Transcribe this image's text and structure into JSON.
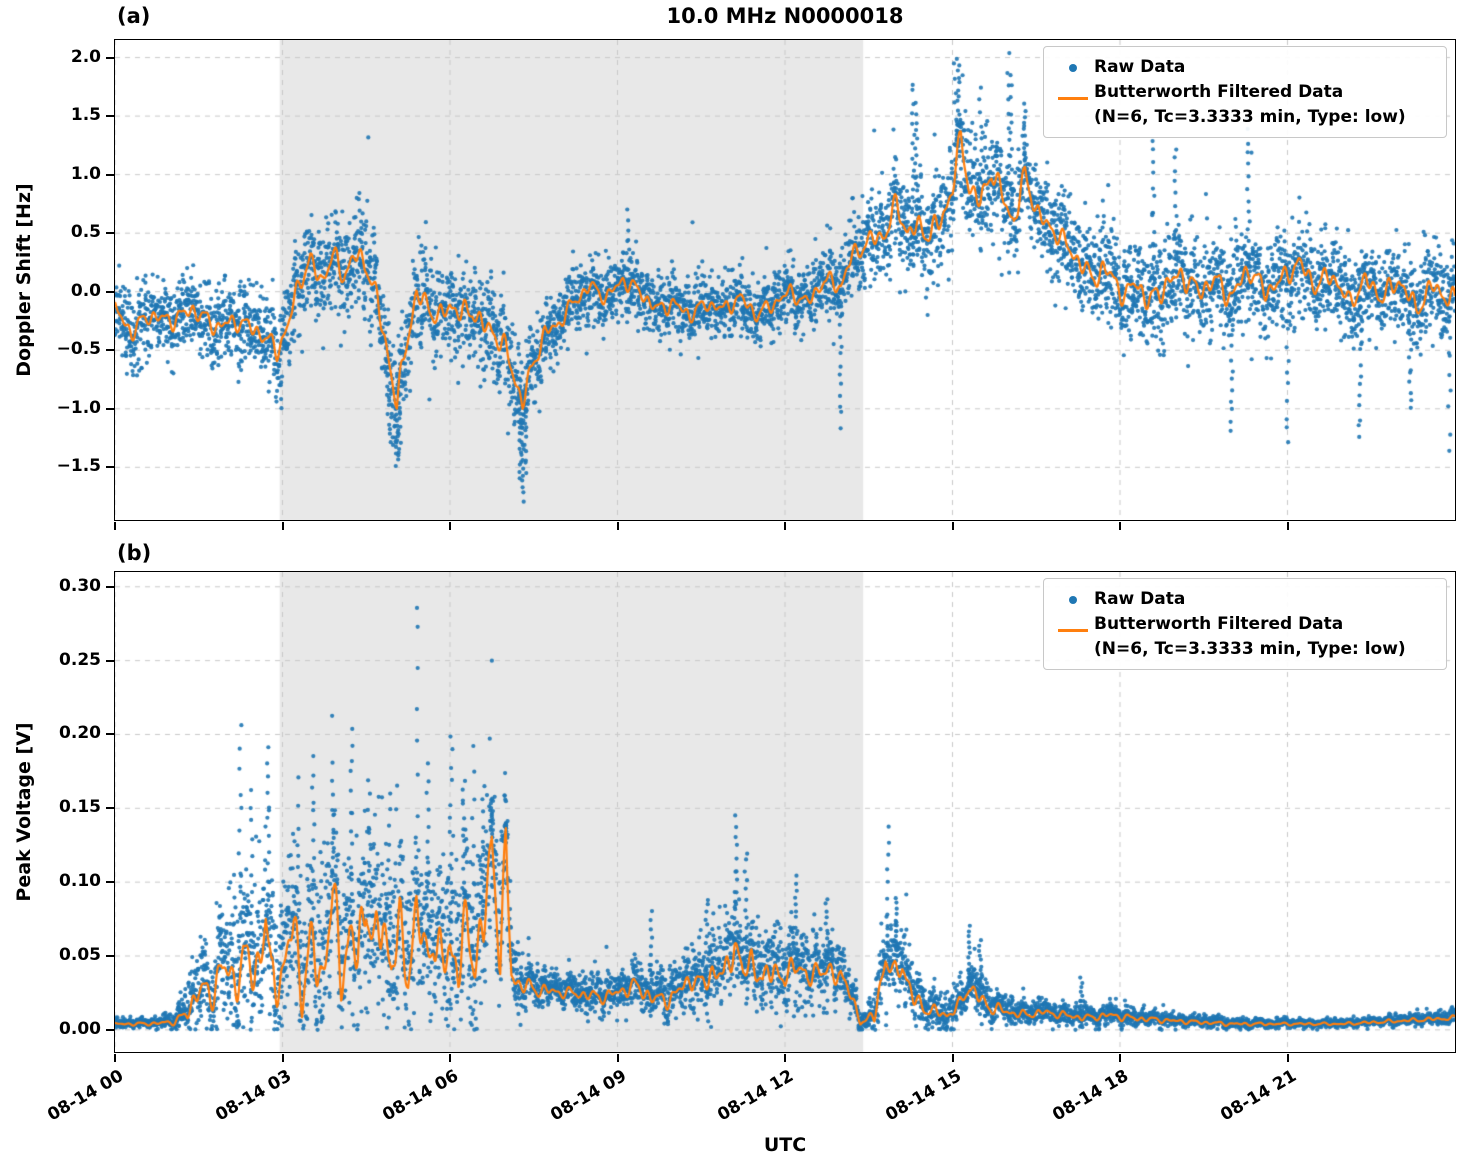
{
  "figure": {
    "title": "10.0 MHz N0000018",
    "xlabel": "UTC"
  },
  "panels": [
    {
      "label": "(a)",
      "ylabel": "Doppler Shift [Hz]"
    },
    {
      "label": "(b)",
      "ylabel": "Peak Voltage [V]"
    }
  ],
  "legend": {
    "raw_label": "Raw Data",
    "filtered_label_line1": "Butterworth Filtered Data",
    "filtered_label_line2": "(N=6, Tc=3.3333 min, Type: low)"
  },
  "colors": {
    "raw": "#1f77b4",
    "filtered": "#ff7f0e",
    "band": "#e8e8e8",
    "grid": "#c9c9c9",
    "text": "#000000"
  },
  "chart_data": [
    {
      "type": "scatter",
      "panel": "a",
      "ylabel": "Doppler Shift [Hz]",
      "ylim": [
        -1.95,
        2.15
      ],
      "yticks": [
        2.0,
        1.5,
        1.0,
        0.5,
        0.0,
        -0.5,
        -1.0,
        -1.5
      ],
      "ytick_labels": [
        "2.0",
        "1.5",
        "1.0",
        "0.5",
        "0.0",
        "−0.5",
        "−1.0",
        "−1.5"
      ],
      "x_range_hours": [
        0,
        24
      ],
      "xticks_hours": [
        0,
        3,
        6,
        9,
        12,
        15,
        18,
        21
      ],
      "xtick_labels": [
        "08-14 00",
        "08-14 03",
        "08-14 06",
        "08-14 09",
        "08-14 12",
        "08-14 15",
        "08-14 18",
        "08-14 21"
      ],
      "shaded_region_hours": [
        2.95,
        13.4
      ],
      "grid": "dashed",
      "legend_position": "upper right",
      "series": [
        {
          "name": "Raw Data",
          "type": "scatter",
          "color": "#1f77b4"
        },
        {
          "name": "Butterworth Filtered Data (N=6, Tc=3.3333 min, Type: low)",
          "type": "line",
          "color": "#ff7f0e",
          "x": [
            0,
            0.3,
            0.6,
            1.0,
            1.4,
            1.8,
            2.2,
            2.6,
            2.9,
            3.1,
            3.3,
            3.5,
            3.7,
            3.9,
            4.1,
            4.3,
            4.5,
            4.7,
            4.9,
            5.05,
            5.2,
            5.4,
            5.6,
            5.8,
            6.0,
            6.2,
            6.4,
            6.6,
            6.8,
            7.0,
            7.3,
            7.5,
            7.7,
            7.9,
            8.2,
            8.5,
            8.8,
            9.1,
            9.4,
            9.7,
            10.0,
            10.3,
            10.6,
            10.9,
            11.2,
            11.5,
            11.8,
            12.1,
            12.4,
            12.7,
            13.0,
            13.2,
            13.4,
            13.6,
            13.8,
            14.0,
            14.2,
            14.4,
            14.6,
            14.8,
            15.0,
            15.15,
            15.3,
            15.5,
            15.7,
            15.9,
            16.1,
            16.3,
            16.5,
            16.7,
            16.9,
            17.1,
            17.3,
            17.5,
            17.7,
            17.9,
            18.1,
            18.3,
            18.5,
            18.8,
            19.1,
            19.4,
            19.7,
            20.0,
            20.3,
            20.6,
            20.9,
            21.2,
            21.5,
            21.8,
            22.1,
            22.4,
            22.7,
            23.0,
            23.3,
            23.6,
            24.0
          ],
          "y": [
            -0.15,
            -0.35,
            -0.2,
            -0.25,
            -0.15,
            -0.3,
            -0.25,
            -0.35,
            -0.5,
            -0.3,
            0.1,
            0.25,
            0.1,
            0.3,
            0.15,
            0.3,
            0.25,
            -0.1,
            -0.55,
            -1.0,
            -0.45,
            -0.05,
            -0.1,
            -0.25,
            -0.1,
            -0.2,
            -0.15,
            -0.3,
            -0.35,
            -0.5,
            -0.95,
            -0.6,
            -0.35,
            -0.3,
            -0.1,
            0.05,
            -0.05,
            0.1,
            0.0,
            -0.15,
            -0.1,
            -0.2,
            -0.1,
            -0.15,
            -0.05,
            -0.2,
            -0.1,
            0.0,
            -0.1,
            0.1,
            0.05,
            0.3,
            0.4,
            0.45,
            0.5,
            0.75,
            0.5,
            0.55,
            0.5,
            0.6,
            0.9,
            1.3,
            0.9,
            0.75,
            1.05,
            0.8,
            0.6,
            1.0,
            0.7,
            0.55,
            0.5,
            0.35,
            0.25,
            0.1,
            0.2,
            0.1,
            -0.05,
            0.1,
            -0.1,
            0.05,
            0.15,
            0.0,
            0.1,
            -0.05,
            0.2,
            0.0,
            0.1,
            0.25,
            0.05,
            0.15,
            -0.1,
            0.1,
            -0.05,
            0.1,
            -0.15,
            0.05,
            -0.1
          ]
        }
      ],
      "scatter_envelope": {
        "x": [
          0,
          1,
          2,
          3,
          4,
          5,
          6,
          7,
          8,
          9,
          10,
          11,
          12,
          13,
          13.5,
          14,
          15,
          16,
          17,
          18,
          19,
          20,
          21,
          22,
          23,
          24
        ],
        "halfwidth": [
          0.35,
          0.35,
          0.35,
          0.4,
          0.45,
          0.5,
          0.45,
          0.45,
          0.3,
          0.3,
          0.3,
          0.3,
          0.3,
          0.35,
          0.4,
          0.45,
          0.5,
          0.45,
          0.4,
          0.45,
          0.45,
          0.45,
          0.4,
          0.4,
          0.4,
          0.45
        ]
      },
      "scatter_extremes": {
        "x": [
          4.9,
          5.05,
          5.1,
          7.25,
          7.3,
          7.35,
          9.2,
          13.0,
          14.3,
          14.35,
          15.05,
          15.1,
          15.5,
          16.0,
          16.05,
          16.3,
          18.6,
          19.0,
          20.3,
          20.0,
          21.0,
          22.3,
          23.2,
          23.9
        ],
        "y": [
          -1.2,
          -1.5,
          -1.35,
          -1.6,
          -1.78,
          -1.55,
          0.7,
          -1.15,
          1.8,
          1.6,
          1.95,
          2.0,
          1.75,
          2.0,
          1.85,
          1.6,
          1.3,
          1.25,
          1.45,
          -1.2,
          -1.3,
          -1.25,
          -1.0,
          -1.35
        ]
      }
    },
    {
      "type": "scatter",
      "panel": "b",
      "ylabel": "Peak Voltage [V]",
      "ylim": [
        -0.015,
        0.31
      ],
      "yticks": [
        0.3,
        0.25,
        0.2,
        0.15,
        0.1,
        0.05,
        0.0
      ],
      "ytick_labels": [
        "0.30",
        "0.25",
        "0.20",
        "0.15",
        "0.10",
        "0.05",
        "0.00"
      ],
      "x_range_hours": [
        0,
        24
      ],
      "xticks_hours": [
        0,
        3,
        6,
        9,
        12,
        15,
        18,
        21
      ],
      "xtick_labels": [
        "08-14 00",
        "08-14 03",
        "08-14 06",
        "08-14 09",
        "08-14 12",
        "08-14 15",
        "08-14 18",
        "08-14 21"
      ],
      "shaded_region_hours": [
        2.95,
        13.4
      ],
      "grid": "dashed",
      "legend_position": "upper right",
      "series": [
        {
          "name": "Raw Data",
          "type": "scatter",
          "color": "#1f77b4"
        },
        {
          "name": "Butterworth Filtered Data (N=6, Tc=3.3333 min, Type: low)",
          "type": "line",
          "color": "#ff7f0e",
          "x": [
            0,
            0.5,
            1.0,
            1.3,
            1.5,
            1.7,
            1.9,
            2.1,
            2.3,
            2.5,
            2.7,
            2.8,
            3.0,
            3.2,
            3.35,
            3.5,
            3.7,
            3.9,
            4.05,
            4.2,
            4.35,
            4.5,
            4.65,
            4.8,
            4.95,
            5.1,
            5.25,
            5.4,
            5.55,
            5.7,
            5.85,
            6.0,
            6.15,
            6.3,
            6.45,
            6.6,
            6.75,
            6.9,
            7.0,
            7.1,
            7.25,
            7.5,
            7.8,
            8.1,
            8.4,
            8.7,
            9.0,
            9.3,
            9.5,
            9.7,
            10.0,
            10.3,
            10.5,
            10.7,
            10.9,
            11.1,
            11.25,
            11.4,
            11.6,
            11.8,
            12.0,
            12.2,
            12.4,
            12.6,
            12.8,
            13.0,
            13.2,
            13.35,
            13.6,
            13.8,
            13.95,
            14.1,
            14.3,
            14.5,
            14.7,
            14.9,
            15.1,
            15.3,
            15.5,
            15.7,
            16.0,
            16.3,
            16.6,
            17.0,
            17.4,
            17.8,
            18.2,
            18.6,
            19.0,
            19.5,
            20.0,
            20.5,
            21.0,
            21.5,
            22.0,
            22.5,
            23.0,
            23.5,
            24.0
          ],
          "y": [
            0.004,
            0.004,
            0.005,
            0.01,
            0.03,
            0.02,
            0.045,
            0.03,
            0.05,
            0.035,
            0.075,
            0.03,
            0.04,
            0.07,
            0.03,
            0.055,
            0.035,
            0.09,
            0.04,
            0.065,
            0.045,
            0.095,
            0.05,
            0.075,
            0.045,
            0.065,
            0.04,
            0.08,
            0.05,
            0.065,
            0.04,
            0.06,
            0.04,
            0.07,
            0.05,
            0.065,
            0.13,
            0.05,
            0.12,
            0.04,
            0.03,
            0.028,
            0.026,
            0.025,
            0.024,
            0.022,
            0.025,
            0.03,
            0.025,
            0.02,
            0.022,
            0.035,
            0.03,
            0.04,
            0.035,
            0.06,
            0.035,
            0.05,
            0.03,
            0.045,
            0.03,
            0.05,
            0.03,
            0.045,
            0.035,
            0.04,
            0.02,
            0.006,
            0.008,
            0.05,
            0.035,
            0.045,
            0.02,
            0.015,
            0.012,
            0.01,
            0.015,
            0.03,
            0.02,
            0.015,
            0.012,
            0.01,
            0.012,
            0.01,
            0.008,
            0.01,
            0.008,
            0.007,
            0.006,
            0.005,
            0.004,
            0.004,
            0.004,
            0.004,
            0.004,
            0.005,
            0.006,
            0.007,
            0.008
          ]
        }
      ],
      "scatter_envelope": {
        "x": [
          0,
          1,
          1.5,
          2,
          2.5,
          3,
          3.5,
          4,
          4.5,
          5,
          5.5,
          6,
          6.5,
          7,
          7.3,
          8,
          9,
          9.5,
          10,
          10.5,
          11,
          11.5,
          12,
          12.5,
          13,
          13.4,
          13.8,
          14.2,
          14.6,
          15,
          15.3,
          15.7,
          16,
          17,
          18,
          19,
          20,
          21,
          22,
          23,
          24
        ],
        "halfwidth": [
          0.003,
          0.005,
          0.03,
          0.05,
          0.06,
          0.06,
          0.07,
          0.07,
          0.08,
          0.07,
          0.06,
          0.07,
          0.07,
          0.06,
          0.02,
          0.012,
          0.015,
          0.02,
          0.02,
          0.025,
          0.035,
          0.03,
          0.03,
          0.03,
          0.025,
          0.006,
          0.03,
          0.025,
          0.015,
          0.012,
          0.02,
          0.015,
          0.01,
          0.008,
          0.008,
          0.005,
          0.004,
          0.003,
          0.003,
          0.004,
          0.005
        ]
      },
      "scatter_extremes": {
        "x": [
          2.24,
          2.45,
          2.74,
          3.3,
          3.55,
          3.9,
          4.24,
          4.55,
          4.92,
          5.43,
          5.6,
          6.02,
          6.25,
          6.42,
          6.6,
          6.75,
          7.0,
          9.6,
          10.6,
          11.12,
          11.3,
          12.2,
          12.75,
          13.85,
          14.0,
          15.3,
          15.5,
          17.3
        ],
        "y": [
          0.205,
          0.16,
          0.19,
          0.17,
          0.185,
          0.18,
          0.205,
          0.17,
          0.16,
          0.292,
          0.18,
          0.2,
          0.17,
          0.19,
          0.165,
          0.155,
          0.14,
          0.08,
          0.09,
          0.145,
          0.12,
          0.105,
          0.09,
          0.137,
          0.09,
          0.07,
          0.06,
          0.035
        ]
      }
    }
  ]
}
